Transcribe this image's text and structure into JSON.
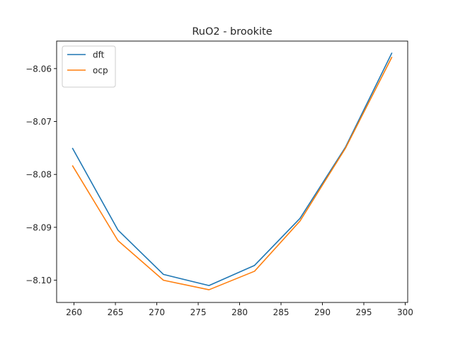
{
  "chart_data": {
    "type": "line",
    "title": "RuO2 - brookite",
    "xlabel": "",
    "ylabel": "",
    "xlim": [
      257.9,
      300.3
    ],
    "ylim": [
      -8.1042,
      -8.0548
    ],
    "xticks": [
      260,
      265,
      270,
      275,
      280,
      285,
      290,
      295,
      300
    ],
    "yticks": [
      -8.1,
      -8.09,
      -8.08,
      -8.07,
      -8.06
    ],
    "ytick_labels": [
      "−8.10",
      "−8.09",
      "−8.08",
      "−8.07",
      "−8.06"
    ],
    "legend_position": "top-left",
    "grid": false,
    "series": [
      {
        "name": "dft",
        "color": "#1f77b4",
        "x": [
          259.8,
          265.3,
          270.8,
          276.3,
          281.8,
          287.3,
          292.8,
          298.4
        ],
        "y": [
          -8.075,
          -8.0905,
          -8.0989,
          -8.101,
          -8.0972,
          -8.0883,
          -8.0748,
          -8.057
        ]
      },
      {
        "name": "ocp",
        "color": "#ff7f0e",
        "x": [
          259.8,
          265.3,
          270.8,
          276.3,
          281.8,
          287.3,
          292.8,
          298.4
        ],
        "y": [
          -8.0783,
          -8.0925,
          -8.1,
          -8.1018,
          -8.0983,
          -8.0888,
          -8.075,
          -8.0578
        ]
      }
    ]
  }
}
